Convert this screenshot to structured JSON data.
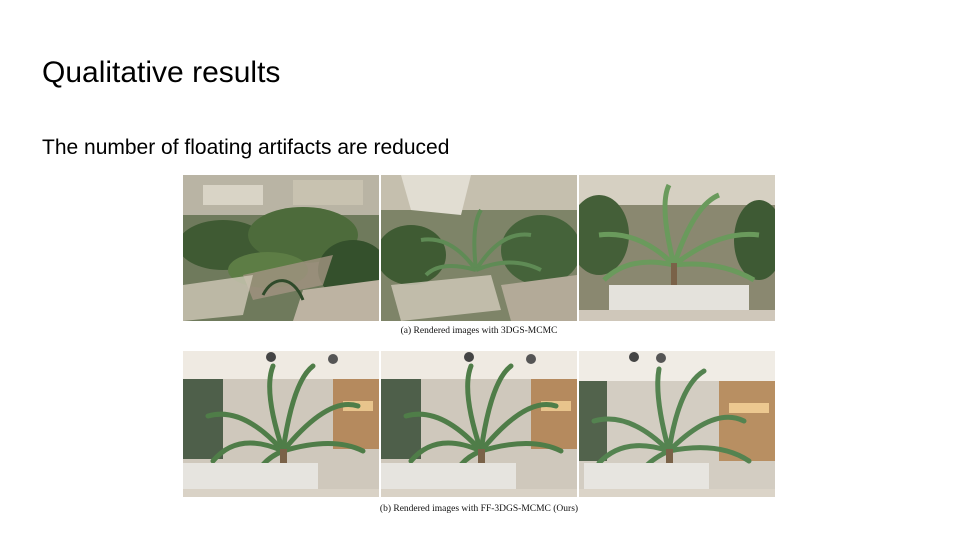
{
  "slide": {
    "title": "Qualitative results",
    "subtitle": "The number of floating artifacts are reduced"
  },
  "figure": {
    "caption_a": "(a)  Rendered images with 3DGS-MCMC",
    "caption_b": "(b)  Rendered images with FF-3DGS-MCMC (Ours)"
  },
  "colors": {
    "foliage_dark": "#2f4a2a",
    "foliage_light": "#8fb07a",
    "ceiling": "#efeae2",
    "planter": "#e2e0dc",
    "floor": "#d8d0c4"
  }
}
